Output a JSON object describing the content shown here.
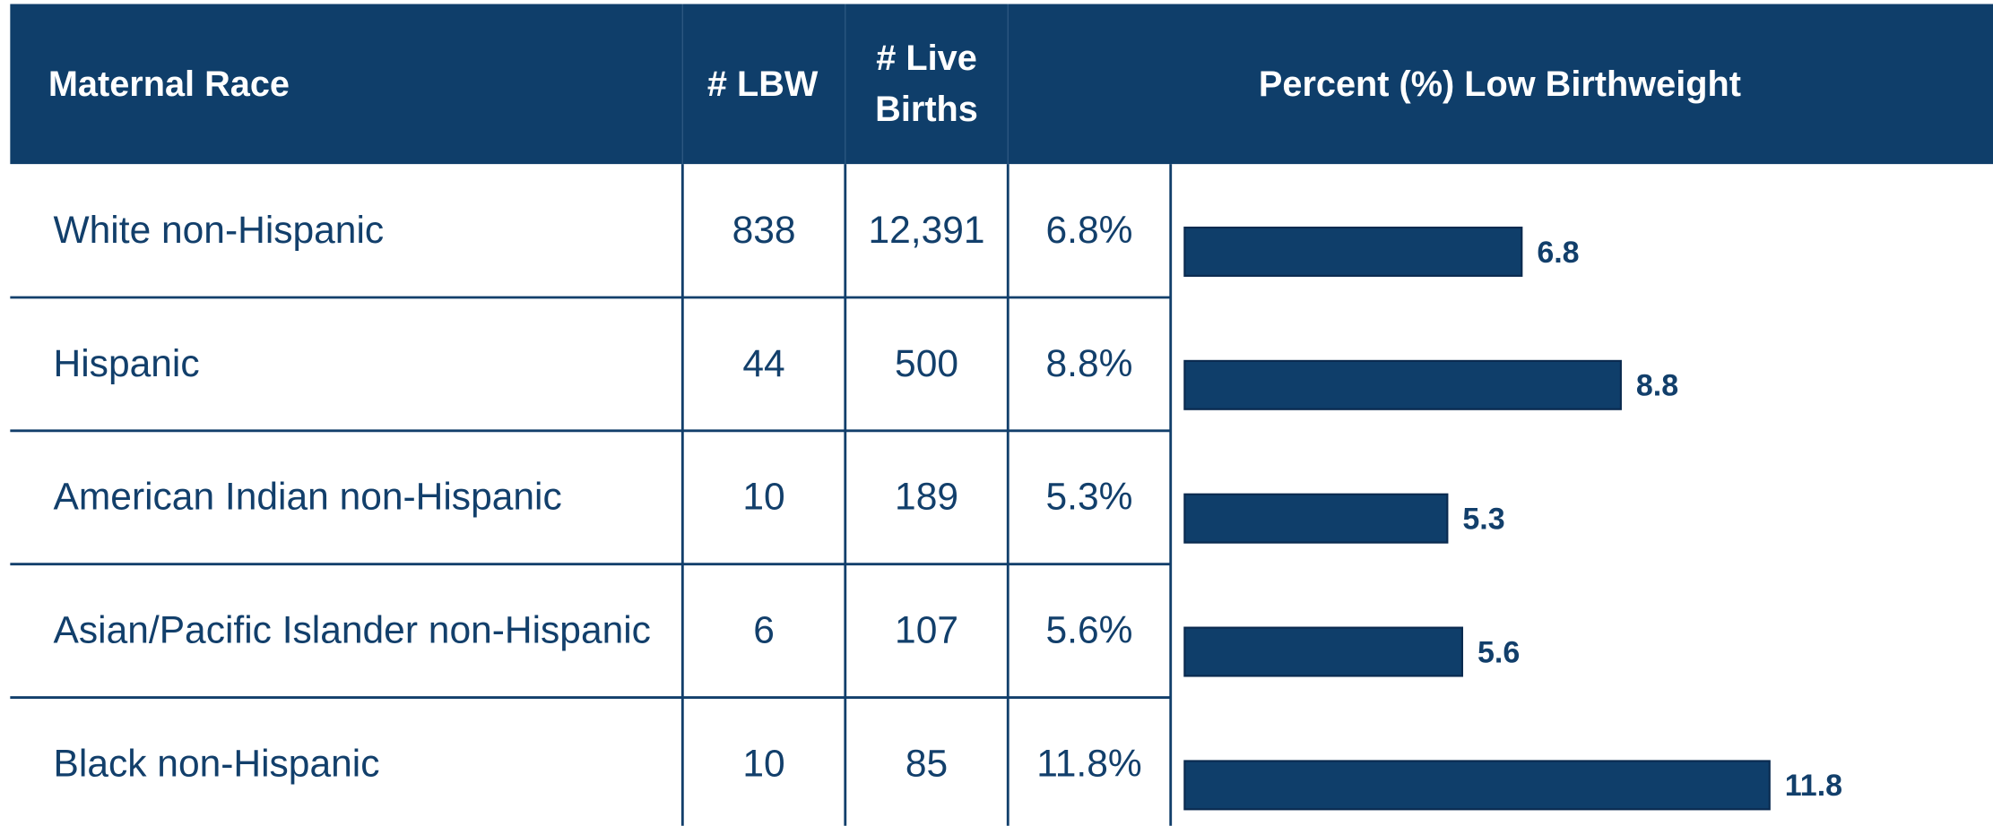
{
  "table": {
    "headers": [
      "Maternal Race",
      "# LBW",
      "# Live Births",
      "Percent (%) Low Birthweight"
    ],
    "rows": [
      [
        "White non-Hispanic",
        "838",
        "12,391",
        "6.8%"
      ],
      [
        "Hispanic",
        "44",
        "500",
        "8.8%"
      ],
      [
        "American Indian non-Hispanic",
        "10",
        "189",
        "5.3%"
      ],
      [
        "Asian/Pacific Islander non-Hispanic",
        "6",
        "107",
        "5.6%"
      ],
      [
        "Black non-Hispanic",
        "10",
        "85",
        "11.8%"
      ]
    ]
  },
  "chart_data": {
    "type": "bar",
    "orientation": "horizontal",
    "values": [
      6.8,
      8.8,
      5.3,
      5.6,
      11.8
    ],
    "color": "#0f3e6a",
    "xlim": [
      0,
      16
    ]
  }
}
